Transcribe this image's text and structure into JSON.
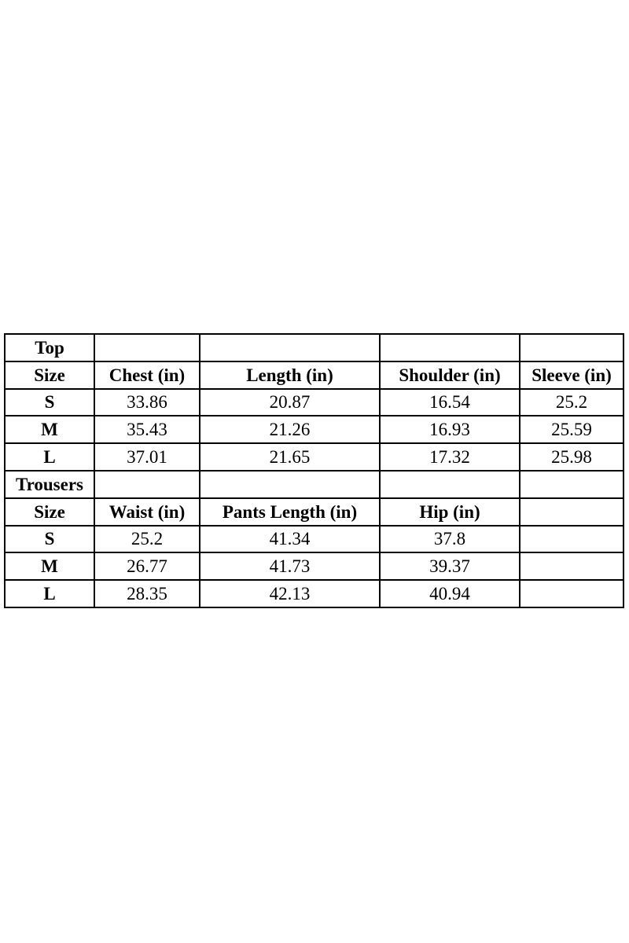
{
  "page": {
    "background_color": "#ffffff",
    "border_color": "#000000",
    "text_color": "#000000"
  },
  "chart_data": [
    {
      "type": "table",
      "title": "Top",
      "columns": [
        "Size",
        "Chest (in)",
        "Length (in)",
        "Shoulder (in)",
        "Sleeve (in)"
      ],
      "rows": [
        [
          "S",
          "33.86",
          "20.87",
          "16.54",
          "25.2"
        ],
        [
          "M",
          "35.43",
          "21.26",
          "16.93",
          "25.59"
        ],
        [
          "L",
          "37.01",
          "21.65",
          "17.32",
          "25.98"
        ]
      ]
    },
    {
      "type": "table",
      "title": "Trousers",
      "columns": [
        "Size",
        "Waist (in)",
        "Pants Length (in)",
        "Hip (in)"
      ],
      "rows": [
        [
          "S",
          "25.2",
          "41.34",
          "37.8"
        ],
        [
          "M",
          "26.77",
          "41.73",
          "39.37"
        ],
        [
          "L",
          "28.35",
          "42.13",
          "40.94"
        ]
      ]
    }
  ]
}
